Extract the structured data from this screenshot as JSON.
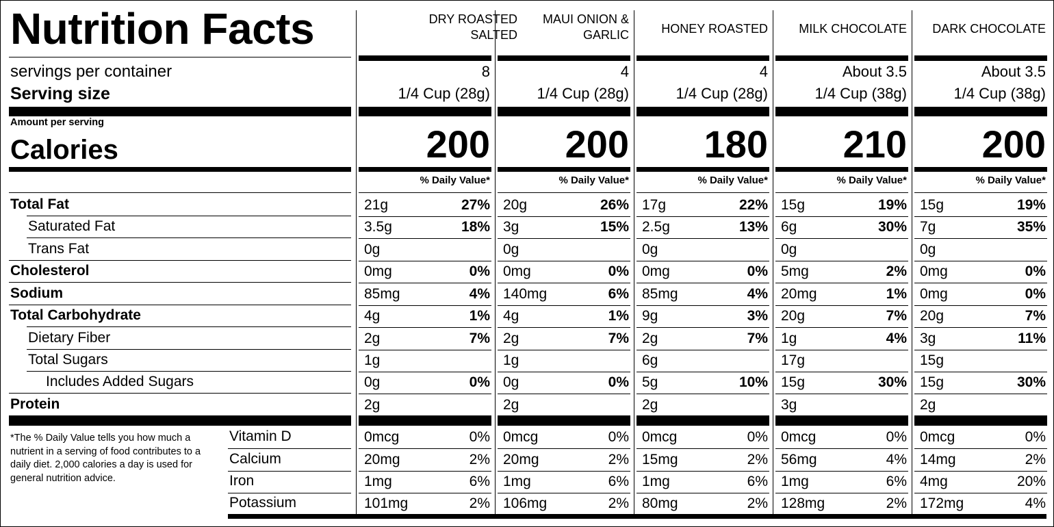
{
  "title": "Nutrition Facts",
  "labels": {
    "servings": "servings per container",
    "serving_size": "Serving size",
    "amount": "Amount per serving",
    "calories": "Calories",
    "dv_header": "% Daily Value*"
  },
  "nutrients": [
    {
      "label": "Total Fat",
      "bold": true,
      "indent": 0
    },
    {
      "label": "Saturated Fat",
      "bold": false,
      "indent": 1
    },
    {
      "label": "Trans Fat",
      "bold": false,
      "indent": 1
    },
    {
      "label": "Cholesterol",
      "bold": true,
      "indent": 0
    },
    {
      "label": "Sodium",
      "bold": true,
      "indent": 0
    },
    {
      "label": "Total Carbohydrate",
      "bold": true,
      "indent": 0
    },
    {
      "label": "Dietary Fiber",
      "bold": false,
      "indent": 1
    },
    {
      "label": "Total Sugars",
      "bold": false,
      "indent": 1
    },
    {
      "label": "Includes Added Sugars",
      "bold": false,
      "indent": 2
    },
    {
      "label": "Protein",
      "bold": true,
      "indent": 0
    }
  ],
  "micros": [
    "Vitamin D",
    "Calcium",
    "Iron",
    "Potassium"
  ],
  "footnote": "*The % Daily Value tells you how much a nutrient in a serving of food contributes to a daily diet. 2,000 calories a day is used for general nutrition advice.",
  "products": [
    {
      "name": "DRY ROASTED SALTED",
      "servings": "8",
      "serving_size": "1/4 Cup (28g)",
      "calories": "200",
      "dv_header": "% Daily Value*",
      "nutrients": [
        [
          "21g",
          "27%"
        ],
        [
          "3.5g",
          "18%"
        ],
        [
          "0g",
          ""
        ],
        [
          "0mg",
          "0%"
        ],
        [
          "85mg",
          "4%"
        ],
        [
          "4g",
          "1%"
        ],
        [
          "2g",
          "7%"
        ],
        [
          "1g",
          ""
        ],
        [
          "0g",
          "0%"
        ],
        [
          "2g",
          ""
        ]
      ],
      "micros": [
        [
          "0mcg",
          "0%"
        ],
        [
          "20mg",
          "2%"
        ],
        [
          "1mg",
          "6%"
        ],
        [
          "101mg",
          "2%"
        ]
      ]
    },
    {
      "name": "MAUI ONION & GARLIC",
      "servings": "4",
      "serving_size": "1/4 Cup (28g)",
      "calories": "200",
      "dv_header": "% Daily Value*",
      "nutrients": [
        [
          "20g",
          "26%"
        ],
        [
          "3g",
          "15%"
        ],
        [
          "0g",
          ""
        ],
        [
          "0mg",
          "0%"
        ],
        [
          "140mg",
          "6%"
        ],
        [
          "4g",
          "1%"
        ],
        [
          "2g",
          "7%"
        ],
        [
          "1g",
          ""
        ],
        [
          "0g",
          "0%"
        ],
        [
          "2g",
          ""
        ]
      ],
      "micros": [
        [
          "0mcg",
          "0%"
        ],
        [
          "20mg",
          "2%"
        ],
        [
          "1mg",
          "6%"
        ],
        [
          "106mg",
          "2%"
        ]
      ]
    },
    {
      "name": "HONEY ROASTED",
      "servings": "4",
      "serving_size": "1/4 Cup (28g)",
      "calories": "180",
      "dv_header": "% Daily Value*",
      "nutrients": [
        [
          "17g",
          "22%"
        ],
        [
          "2.5g",
          "13%"
        ],
        [
          "0g",
          ""
        ],
        [
          "0mg",
          "0%"
        ],
        [
          "85mg",
          "4%"
        ],
        [
          "9g",
          "3%"
        ],
        [
          "2g",
          "7%"
        ],
        [
          "6g",
          ""
        ],
        [
          "5g",
          "10%"
        ],
        [
          "2g",
          ""
        ]
      ],
      "micros": [
        [
          "0mcg",
          "0%"
        ],
        [
          "15mg",
          "2%"
        ],
        [
          "1mg",
          "6%"
        ],
        [
          "80mg",
          "2%"
        ]
      ]
    },
    {
      "name": "MILK CHOCOLATE",
      "servings": "About 3.5",
      "serving_size": "1/4 Cup (38g)",
      "calories": "210",
      "dv_header": "% Daily Value*",
      "nutrients": [
        [
          "15g",
          "19%"
        ],
        [
          "6g",
          "30%"
        ],
        [
          "0g",
          ""
        ],
        [
          "5mg",
          "2%"
        ],
        [
          "20mg",
          "1%"
        ],
        [
          "20g",
          "7%"
        ],
        [
          "1g",
          "4%"
        ],
        [
          "17g",
          ""
        ],
        [
          "15g",
          "30%"
        ],
        [
          "3g",
          ""
        ]
      ],
      "micros": [
        [
          "0mcg",
          "0%"
        ],
        [
          "56mg",
          "4%"
        ],
        [
          "1mg",
          "6%"
        ],
        [
          "128mg",
          "2%"
        ]
      ]
    },
    {
      "name": "DARK CHOCOLATE",
      "servings": "About 3.5",
      "serving_size": "1/4 Cup (38g)",
      "calories": "200",
      "dv_header": "% Daily Value*",
      "nutrients": [
        [
          "15g",
          "19%"
        ],
        [
          "7g",
          "35%"
        ],
        [
          "0g",
          ""
        ],
        [
          "0mg",
          "0%"
        ],
        [
          "0mg",
          "0%"
        ],
        [
          "20g",
          "7%"
        ],
        [
          "3g",
          "11%"
        ],
        [
          "15g",
          ""
        ],
        [
          "15g",
          "30%"
        ],
        [
          "2g",
          ""
        ]
      ],
      "micros": [
        [
          "0mcg",
          "0%"
        ],
        [
          "14mg",
          "2%"
        ],
        [
          "4mg",
          "20%"
        ],
        [
          "172mg",
          "4%"
        ]
      ]
    }
  ]
}
